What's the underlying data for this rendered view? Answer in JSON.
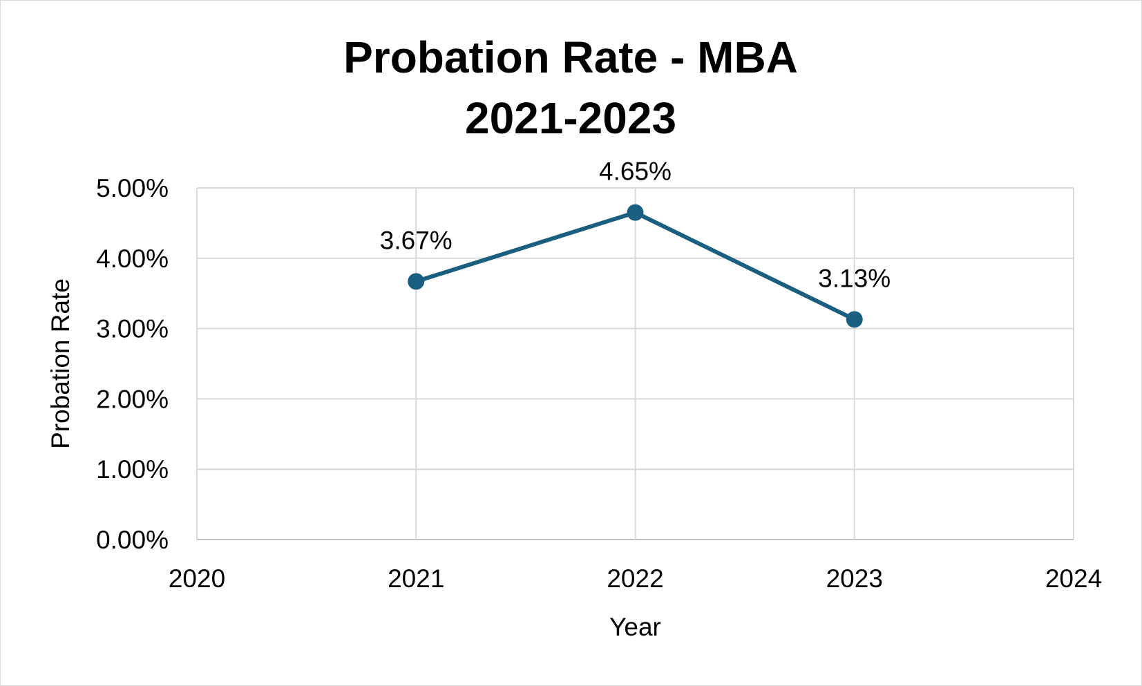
{
  "chart_data": {
    "type": "line",
    "title": [
      "Probation Rate - MBA",
      "2021-2023"
    ],
    "xlabel": "Year",
    "ylabel": "Probation Rate",
    "xlim": [
      2020,
      2024
    ],
    "ylim": [
      0,
      5
    ],
    "x_ticks": [
      2020,
      2021,
      2022,
      2023,
      2024
    ],
    "y_ticks": [
      0,
      1,
      2,
      3,
      4,
      5
    ],
    "y_tick_labels": [
      "0.00%",
      "1.00%",
      "2.00%",
      "3.00%",
      "4.00%",
      "5.00%"
    ],
    "grid": true,
    "legend": "none",
    "series": [
      {
        "color": "#1a5e80",
        "x": [
          2021,
          2022,
          2023
        ],
        "values": [
          3.67,
          4.65,
          3.13
        ],
        "labels": [
          "3.67%",
          "4.65%",
          "3.13%"
        ]
      }
    ]
  }
}
